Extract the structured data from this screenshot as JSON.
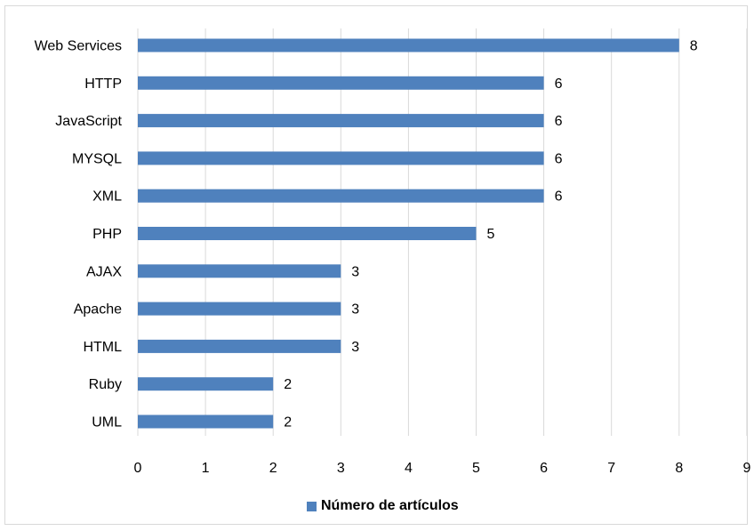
{
  "chart_data": {
    "type": "bar",
    "orientation": "horizontal",
    "categories": [
      "Web Services",
      "HTTP",
      "JavaScript",
      "MYSQL",
      "XML",
      "PHP",
      "AJAX",
      "Apache",
      "HTML",
      "Ruby",
      "UML"
    ],
    "series": [
      {
        "name": "Número de artículos",
        "values": [
          8,
          6,
          6,
          6,
          6,
          5,
          3,
          3,
          3,
          2,
          2
        ],
        "color": "#4f81bd"
      }
    ],
    "xlim": [
      0,
      9
    ],
    "x_ticks": [
      "0",
      "1",
      "2",
      "3",
      "4",
      "5",
      "6",
      "7",
      "8",
      "9"
    ],
    "grid": "vertical",
    "data_labels": true,
    "legend_position": "bottom"
  }
}
